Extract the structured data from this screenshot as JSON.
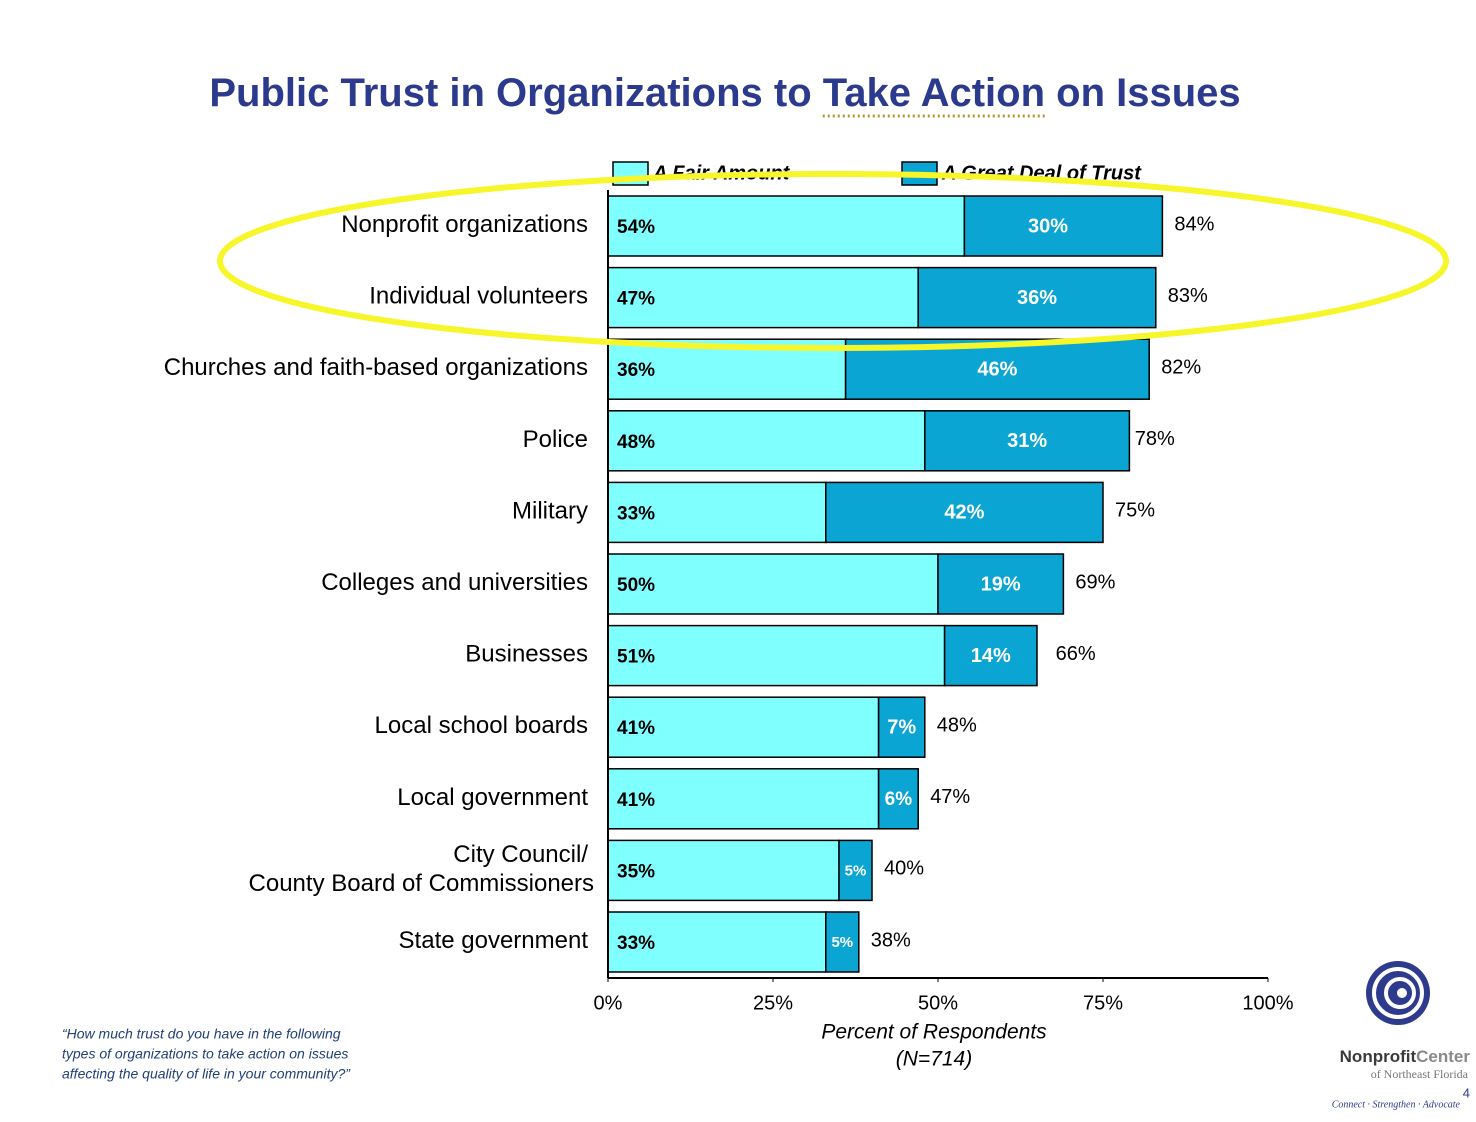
{
  "chart_data": {
    "type": "stacked-bar-horizontal",
    "title": [
      "Public Trust in Organizations to ",
      "Take Action",
      " on Issues"
    ],
    "categories": [
      "Nonprofit organizations",
      "Individual volunteers",
      "Churches and faith-based organizations",
      "Police",
      "Military",
      "Colleges and universities",
      "Businesses",
      "Local school boards",
      "Local government",
      "City Council/\nCounty Board of Commissioners",
      "State government"
    ],
    "series": [
      {
        "name": "A Fair Amount",
        "color": "#80ffff",
        "values": [
          54,
          47,
          36,
          48,
          33,
          50,
          51,
          41,
          41,
          35,
          33
        ],
        "value_labels": [
          "54%",
          "47%",
          "36%",
          "48%",
          "33%",
          "50%",
          "51%",
          "41%",
          "41%",
          "35%",
          "33%"
        ]
      },
      {
        "name": "A Great Deal of Trust",
        "color": "#0aa5d3",
        "values": [
          30,
          36,
          46,
          31,
          42,
          19,
          14,
          7,
          6,
          5,
          5
        ],
        "value_labels": [
          "30%",
          "36%",
          "46%",
          "31%",
          "42%",
          "19%",
          "14%",
          "7%",
          "6%",
          "5%",
          "5%"
        ]
      }
    ],
    "totals": [
      84,
      83,
      82,
      78,
      75,
      69,
      66,
      48,
      47,
      40,
      38
    ],
    "total_labels": [
      "84%",
      "83%",
      "82%",
      "78%",
      "75%",
      "69%",
      "66%",
      "48%",
      "47%",
      "40%",
      "38%"
    ],
    "xlim": [
      0,
      100
    ],
    "xticks": [
      {
        "value": 0,
        "label": "0%"
      },
      {
        "value": 25,
        "label": "25%"
      },
      {
        "value": 50,
        "label": "50%"
      },
      {
        "value": 75,
        "label": "75%"
      },
      {
        "value": 100,
        "label": "100%"
      }
    ],
    "xlabel": [
      "Percent of Respondents",
      "(N=714)"
    ],
    "footnote": [
      "“How much trust do you have in the following",
      "types of organizations to take action on issues",
      "affecting the quality of life in your community?”"
    ],
    "logo": {
      "name_bold": "Nonprofit",
      "name_light": "Center",
      "subtitle": "of Northeast Florida",
      "tagline": "Connect · Strengthen · Advocate"
    },
    "page_number": "4"
  }
}
